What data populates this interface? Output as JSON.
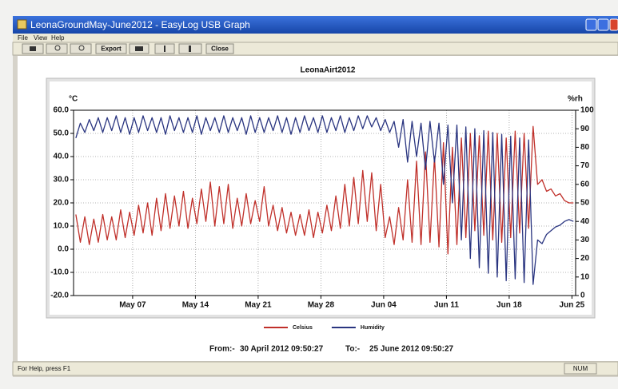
{
  "window": {
    "title": "LeonaGroundMay-June2012 - EasyLog USB Graph",
    "menu": [
      "File",
      "View",
      "Help"
    ],
    "toolbar": [
      "Export",
      "Close"
    ],
    "status": "For Help, press F1",
    "status_right": "NUM"
  },
  "chart_data": {
    "type": "line",
    "title": "LeonaAirt2012",
    "y_label": "°C",
    "y2_label": "%rh",
    "from_label": "From:-",
    "from": "30 April 2012 09:50:27",
    "to_label": "To:-",
    "to": "25 June 2012 09:50:27",
    "grid": true,
    "legend": "bottom",
    "xlim": [
      "2012-04-30T09:50",
      "2012-06-25T09:50"
    ],
    "xticks": [
      {
        "value": "2012-05-07T00:00",
        "label": "May 07"
      },
      {
        "value": "2012-05-14T00:00",
        "label": "May 14"
      },
      {
        "value": "2012-05-21T00:00",
        "label": "May 21"
      },
      {
        "value": "2012-05-28T00:00",
        "label": "May 28"
      },
      {
        "value": "2012-06-04T00:00",
        "label": "Jun 04"
      },
      {
        "value": "2012-06-11T00:00",
        "label": "Jun 11"
      },
      {
        "value": "2012-06-18T00:00",
        "label": "Jun 18"
      },
      {
        "value": "2012-06-25T00:00",
        "label": "Jun 25"
      }
    ],
    "ylim": [
      -20,
      60
    ],
    "yticks": [
      {
        "value": -20,
        "label": "-20.0"
      },
      {
        "value": -10,
        "label": "-10.0"
      },
      {
        "value": 0,
        "label": "0.0"
      },
      {
        "value": 10,
        "label": "10.0"
      },
      {
        "value": 20,
        "label": "20.0"
      },
      {
        "value": 30,
        "label": "30.0"
      },
      {
        "value": 40,
        "label": "40.0"
      },
      {
        "value": 50,
        "label": "50.0"
      },
      {
        "value": 60,
        "label": "60.0"
      }
    ],
    "y2lim": [
      0,
      100
    ],
    "y2ticks": [
      0,
      10,
      20,
      30,
      40,
      50,
      60,
      70,
      80,
      90,
      100
    ],
    "x": [
      "2012-04-30T16:00",
      "2012-05-01T04:00",
      "2012-05-01T16:00",
      "2012-05-02T04:00",
      "2012-05-02T16:00",
      "2012-05-03T04:00",
      "2012-05-03T16:00",
      "2012-05-04T04:00",
      "2012-05-04T16:00",
      "2012-05-05T04:00",
      "2012-05-05T16:00",
      "2012-05-06T04:00",
      "2012-05-06T16:00",
      "2012-05-07T04:00",
      "2012-05-07T16:00",
      "2012-05-08T04:00",
      "2012-05-08T16:00",
      "2012-05-09T04:00",
      "2012-05-09T16:00",
      "2012-05-10T04:00",
      "2012-05-10T16:00",
      "2012-05-11T04:00",
      "2012-05-11T16:00",
      "2012-05-12T04:00",
      "2012-05-12T16:00",
      "2012-05-13T04:00",
      "2012-05-13T16:00",
      "2012-05-14T04:00",
      "2012-05-14T16:00",
      "2012-05-15T04:00",
      "2012-05-15T16:00",
      "2012-05-16T04:00",
      "2012-05-16T16:00",
      "2012-05-17T04:00",
      "2012-05-17T16:00",
      "2012-05-18T04:00",
      "2012-05-18T16:00",
      "2012-05-19T04:00",
      "2012-05-19T16:00",
      "2012-05-20T04:00",
      "2012-05-20T16:00",
      "2012-05-21T04:00",
      "2012-05-21T16:00",
      "2012-05-22T04:00",
      "2012-05-22T16:00",
      "2012-05-23T04:00",
      "2012-05-23T16:00",
      "2012-05-24T04:00",
      "2012-05-24T16:00",
      "2012-05-25T04:00",
      "2012-05-25T16:00",
      "2012-05-26T04:00",
      "2012-05-26T16:00",
      "2012-05-27T04:00",
      "2012-05-27T16:00",
      "2012-05-28T04:00",
      "2012-05-28T16:00",
      "2012-05-29T04:00",
      "2012-05-29T16:00",
      "2012-05-30T04:00",
      "2012-05-30T16:00",
      "2012-05-31T04:00",
      "2012-05-31T16:00",
      "2012-06-01T04:00",
      "2012-06-01T16:00",
      "2012-06-02T04:00",
      "2012-06-02T16:00",
      "2012-06-03T04:00",
      "2012-06-03T16:00",
      "2012-06-04T04:00",
      "2012-06-04T16:00",
      "2012-06-05T04:00",
      "2012-06-05T16:00",
      "2012-06-06T04:00",
      "2012-06-06T16:00",
      "2012-06-07T04:00",
      "2012-06-07T16:00",
      "2012-06-08T04:00",
      "2012-06-08T16:00",
      "2012-06-09T04:00",
      "2012-06-09T16:00",
      "2012-06-10T04:00",
      "2012-06-10T16:00",
      "2012-06-11T04:00",
      "2012-06-11T16:00",
      "2012-06-12T04:00",
      "2012-06-12T16:00",
      "2012-06-13T04:00",
      "2012-06-13T16:00",
      "2012-06-14T04:00",
      "2012-06-14T16:00",
      "2012-06-15T04:00",
      "2012-06-15T16:00",
      "2012-06-16T04:00",
      "2012-06-16T16:00",
      "2012-06-17T04:00",
      "2012-06-17T16:00",
      "2012-06-18T04:00",
      "2012-06-18T16:00",
      "2012-06-19T04:00",
      "2012-06-19T16:00",
      "2012-06-20T04:00",
      "2012-06-20T16:00",
      "2012-06-21T04:00",
      "2012-06-21T16:00",
      "2012-06-22T04:00",
      "2012-06-22T16:00",
      "2012-06-23T04:00",
      "2012-06-23T16:00",
      "2012-06-24T04:00",
      "2012-06-24T16:00",
      "2012-06-25T04:00"
    ],
    "series": [
      {
        "name": "Celsius",
        "color": "#c0302a",
        "axis": "y",
        "values": [
          15,
          3,
          14,
          2,
          13,
          3,
          15,
          4,
          14,
          4,
          17,
          5,
          16,
          6,
          19,
          7,
          20,
          6,
          22,
          8,
          24,
          9,
          23,
          10,
          25,
          9,
          22,
          11,
          26,
          12,
          29,
          10,
          27,
          11,
          28,
          9,
          22,
          10,
          24,
          11,
          21,
          12,
          27,
          10,
          19,
          8,
          18,
          7,
          16,
          6,
          15,
          6,
          17,
          5,
          16,
          7,
          19,
          8,
          23,
          9,
          28,
          10,
          31,
          11,
          34,
          12,
          33,
          8,
          28,
          5,
          14,
          2,
          18,
          4,
          30,
          3,
          38,
          2,
          42,
          3,
          40,
          1,
          46,
          -2,
          44,
          2,
          48,
          5,
          50,
          8,
          49,
          6,
          51,
          4,
          50,
          3,
          48,
          5,
          51,
          7,
          50,
          9,
          53,
          28,
          30,
          25,
          26,
          23,
          24,
          21,
          20,
          20
        ]
      },
      {
        "name": "Humidity",
        "color": "#2a3580",
        "axis": "y2",
        "values": [
          85,
          93,
          88,
          95,
          89,
          96,
          88,
          96,
          89,
          97,
          88,
          96,
          87,
          96,
          88,
          97,
          89,
          96,
          88,
          96,
          87,
          97,
          89,
          96,
          88,
          96,
          88,
          97,
          87,
          96,
          89,
          96,
          88,
          97,
          88,
          96,
          89,
          96,
          87,
          97,
          88,
          96,
          88,
          96,
          89,
          97,
          88,
          96,
          87,
          96,
          88,
          97,
          89,
          96,
          88,
          97,
          88,
          96,
          89,
          97,
          88,
          96,
          89,
          97,
          90,
          97,
          91,
          96,
          89,
          95,
          88,
          94,
          80,
          95,
          72,
          94,
          75,
          93,
          68,
          94,
          72,
          93,
          60,
          92,
          50,
          92,
          30,
          91,
          20,
          90,
          15,
          89,
          12,
          88,
          10,
          87,
          8,
          86,
          9,
          85,
          7,
          84,
          6,
          30,
          28,
          33,
          35,
          37,
          38,
          40,
          41,
          40
        ]
      }
    ]
  }
}
